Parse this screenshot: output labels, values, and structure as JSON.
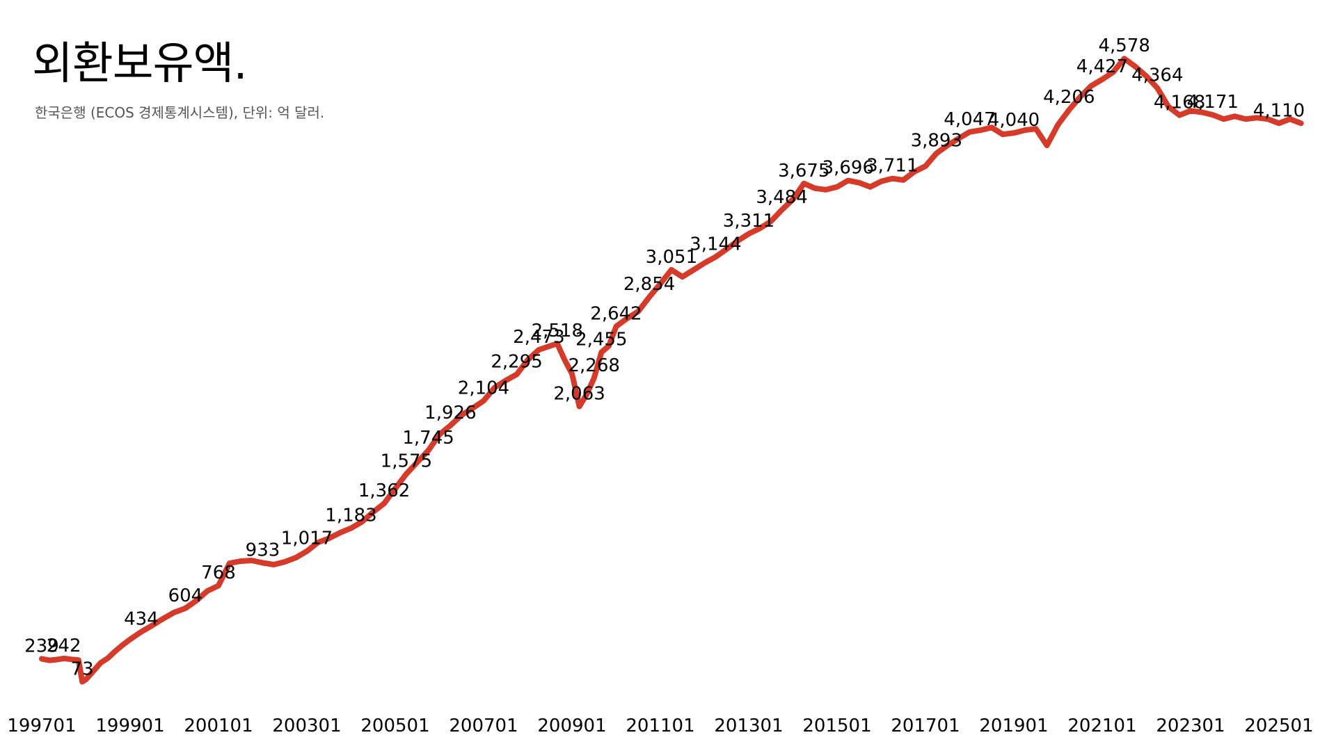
{
  "header": {
    "title": "외환보유액.",
    "subtitle": "한국은행 (ECOS 경제통계시스템), 단위: 억 달러."
  },
  "colors": {
    "line": "#d63a28",
    "text": "#000000",
    "subtitle": "#555555"
  },
  "chart_data": {
    "type": "line",
    "title": "외환보유액.",
    "subtitle": "한국은행 (ECOS 경제통계시스템), 단위: 억 달러.",
    "xlabel": "",
    "ylabel": "",
    "ylim": [
      0,
      4800
    ],
    "grid": false,
    "legend": "none",
    "x_ticks": [
      "199701",
      "199901",
      "200101",
      "200301",
      "200501",
      "200701",
      "200901",
      "201101",
      "201301",
      "201501",
      "201701",
      "201901",
      "202101",
      "202301",
      "202501"
    ],
    "series": [
      {
        "values": [
          [
            "199701",
            239
          ],
          [
            "199703",
            228
          ],
          [
            "199705",
            233
          ],
          [
            "199707",
            242
          ],
          [
            "199709",
            235
          ],
          [
            "199711",
            230
          ],
          [
            "199712",
            73
          ],
          [
            "199801",
            90
          ],
          [
            "199803",
            150
          ],
          [
            "199805",
            210
          ],
          [
            "199807",
            245
          ],
          [
            "199809",
            295
          ],
          [
            "199811",
            340
          ],
          [
            "199901",
            380
          ],
          [
            "199904",
            434
          ],
          [
            "199907",
            480
          ],
          [
            "199910",
            530
          ],
          [
            "200001",
            575
          ],
          [
            "200004",
            604
          ],
          [
            "200007",
            660
          ],
          [
            "200010",
            730
          ],
          [
            "200101",
            768
          ],
          [
            "200104",
            930
          ],
          [
            "200107",
            945
          ],
          [
            "200110",
            950
          ],
          [
            "200201",
            933
          ],
          [
            "200204",
            920
          ],
          [
            "200207",
            940
          ],
          [
            "200210",
            970
          ],
          [
            "200301",
            1017
          ],
          [
            "200304",
            1080
          ],
          [
            "200307",
            1110
          ],
          [
            "200310",
            1150
          ],
          [
            "200401",
            1183
          ],
          [
            "200404",
            1230
          ],
          [
            "200407",
            1300
          ],
          [
            "200410",
            1362
          ],
          [
            "200501",
            1470
          ],
          [
            "200504",
            1575
          ],
          [
            "200507",
            1660
          ],
          [
            "200510",
            1745
          ],
          [
            "200601",
            1860
          ],
          [
            "200604",
            1926
          ],
          [
            "200607",
            2000
          ],
          [
            "200610",
            2050
          ],
          [
            "200701",
            2104
          ],
          [
            "200704",
            2200
          ],
          [
            "200707",
            2250
          ],
          [
            "200710",
            2295
          ],
          [
            "200801",
            2400
          ],
          [
            "200804",
            2473
          ],
          [
            "200807",
            2500
          ],
          [
            "200809",
            2518
          ],
          [
            "200811",
            2400
          ],
          [
            "200901",
            2300
          ],
          [
            "200903",
            2063
          ],
          [
            "200905",
            2150
          ],
          [
            "200907",
            2268
          ],
          [
            "200909",
            2455
          ],
          [
            "200911",
            2500
          ],
          [
            "201001",
            2642
          ],
          [
            "201004",
            2700
          ],
          [
            "201007",
            2750
          ],
          [
            "201010",
            2854
          ],
          [
            "201101",
            2950
          ],
          [
            "201104",
            3051
          ],
          [
            "201107",
            3000
          ],
          [
            "201110",
            3050
          ],
          [
            "201201",
            3100
          ],
          [
            "201204",
            3144
          ],
          [
            "201207",
            3200
          ],
          [
            "201210",
            3260
          ],
          [
            "201301",
            3311
          ],
          [
            "201304",
            3350
          ],
          [
            "201307",
            3400
          ],
          [
            "201310",
            3484
          ],
          [
            "201401",
            3560
          ],
          [
            "201404",
            3675
          ],
          [
            "201407",
            3640
          ],
          [
            "201410",
            3630
          ],
          [
            "201501",
            3650
          ],
          [
            "201504",
            3696
          ],
          [
            "201507",
            3680
          ],
          [
            "201510",
            3650
          ],
          [
            "201601",
            3690
          ],
          [
            "201604",
            3711
          ],
          [
            "201607",
            3700
          ],
          [
            "201610",
            3760
          ],
          [
            "201701",
            3800
          ],
          [
            "201704",
            3893
          ],
          [
            "201707",
            3950
          ],
          [
            "201710",
            4000
          ],
          [
            "201801",
            4047
          ],
          [
            "201804",
            4060
          ],
          [
            "201807",
            4080
          ],
          [
            "201810",
            4030
          ],
          [
            "201901",
            4040
          ],
          [
            "201904",
            4060
          ],
          [
            "201907",
            4070
          ],
          [
            "201910",
            3950
          ],
          [
            "202001",
            4100
          ],
          [
            "202004",
            4206
          ],
          [
            "202007",
            4300
          ],
          [
            "202010",
            4380
          ],
          [
            "202101",
            4427
          ],
          [
            "202104",
            4480
          ],
          [
            "202107",
            4578
          ],
          [
            "202110",
            4520
          ],
          [
            "202201",
            4450
          ],
          [
            "202204",
            4364
          ],
          [
            "202207",
            4230
          ],
          [
            "202210",
            4168
          ],
          [
            "202301",
            4200
          ],
          [
            "202304",
            4190
          ],
          [
            "202307",
            4171
          ],
          [
            "202310",
            4140
          ],
          [
            "202401",
            4160
          ],
          [
            "202404",
            4140
          ],
          [
            "202407",
            4150
          ],
          [
            "202410",
            4140
          ],
          [
            "202501",
            4110
          ],
          [
            "202504",
            4140
          ],
          [
            "202507",
            4110
          ]
        ]
      }
    ],
    "data_labels": [
      {
        "x": "199701",
        "label": "239"
      },
      {
        "x": "199707",
        "label": "242"
      },
      {
        "x": "199712",
        "label": "73"
      },
      {
        "x": "199904",
        "label": "434"
      },
      {
        "x": "200004",
        "label": "604"
      },
      {
        "x": "200101",
        "label": "768"
      },
      {
        "x": "200201",
        "label": "933"
      },
      {
        "x": "200301",
        "label": "1,017"
      },
      {
        "x": "200401",
        "label": "1,183"
      },
      {
        "x": "200410",
        "label": "1,362"
      },
      {
        "x": "200504",
        "label": "1,575"
      },
      {
        "x": "200510",
        "label": "1,745"
      },
      {
        "x": "200604",
        "label": "1,926"
      },
      {
        "x": "200701",
        "label": "2,104"
      },
      {
        "x": "200710",
        "label": "2,295"
      },
      {
        "x": "200804",
        "label": "2,473"
      },
      {
        "x": "200809",
        "label": "2,518"
      },
      {
        "x": "200903",
        "label": "2,063"
      },
      {
        "x": "200907",
        "label": "2,268"
      },
      {
        "x": "200909",
        "label": "2,455"
      },
      {
        "x": "201001",
        "label": "2,642"
      },
      {
        "x": "201010",
        "label": "2,854"
      },
      {
        "x": "201104",
        "label": "3,051"
      },
      {
        "x": "201204",
        "label": "3,144"
      },
      {
        "x": "201301",
        "label": "3,311"
      },
      {
        "x": "201310",
        "label": "3,484"
      },
      {
        "x": "201404",
        "label": "3,675"
      },
      {
        "x": "201504",
        "label": "3,696"
      },
      {
        "x": "201604",
        "label": "3,711"
      },
      {
        "x": "201704",
        "label": "3,893"
      },
      {
        "x": "201801",
        "label": "4,047"
      },
      {
        "x": "201901",
        "label": "4,040"
      },
      {
        "x": "202004",
        "label": "4,206"
      },
      {
        "x": "202101",
        "label": "4,427"
      },
      {
        "x": "202107",
        "label": "4,578"
      },
      {
        "x": "202204",
        "label": "4,364"
      },
      {
        "x": "202210",
        "label": "4,168"
      },
      {
        "x": "202307",
        "label": "4,171"
      },
      {
        "x": "202501",
        "label": "4,110"
      }
    ]
  }
}
